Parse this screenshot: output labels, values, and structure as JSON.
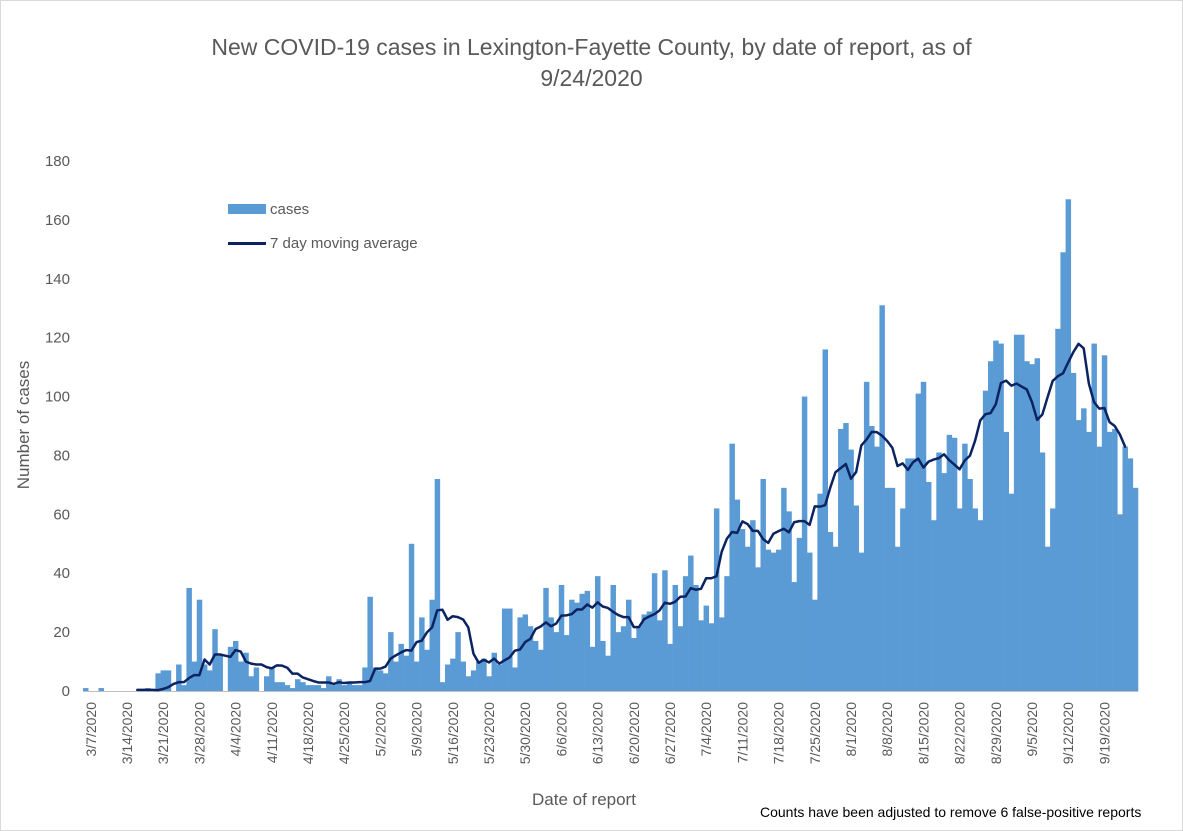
{
  "chart_data": {
    "type": "bar",
    "title_line1": "New COVID-19 cases in Lexington-Fayette County, by date of report, as of",
    "title_line2": "9/24/2020",
    "xlabel": "Date of report",
    "ylabel": "Number of cases",
    "ylim": [
      0,
      180
    ],
    "yticks": [
      0,
      20,
      40,
      60,
      80,
      100,
      120,
      140,
      160,
      180
    ],
    "note": "Counts have been adjusted to remove 6 false-positive reports",
    "grid": false,
    "legend_position": "top-left",
    "colors": {
      "bar": "#5b9bd5",
      "line": "#0b2361"
    },
    "x_start": "3/6/2020",
    "x_end": "9/24/2020",
    "tick_labels": [
      "3/7/2020",
      "3/14/2020",
      "3/21/2020",
      "3/28/2020",
      "4/4/2020",
      "4/11/2020",
      "4/18/2020",
      "4/25/2020",
      "5/2/2020",
      "5/9/2020",
      "5/16/2020",
      "5/23/2020",
      "5/30/2020",
      "6/6/2020",
      "6/13/2020",
      "6/20/2020",
      "6/27/2020",
      "7/4/2020",
      "7/11/2020",
      "7/18/2020",
      "7/25/2020",
      "8/1/2020",
      "8/8/2020",
      "8/15/2020",
      "8/22/2020",
      "8/29/2020",
      "9/5/2020",
      "9/12/2020",
      "9/19/2020"
    ],
    "series": [
      {
        "name": "cases",
        "type": "bar",
        "values": [
          1,
          0,
          0,
          1,
          0,
          0,
          0,
          0,
          0,
          0,
          0,
          0,
          1,
          0,
          6,
          7,
          7,
          0,
          9,
          2,
          35,
          10,
          31,
          9,
          7,
          21,
          12,
          0,
          15,
          17,
          10,
          13,
          5,
          8,
          0,
          5,
          8,
          3,
          3,
          2,
          1,
          4,
          3,
          2,
          2,
          2,
          1,
          5,
          2,
          4,
          2,
          3,
          2,
          2,
          8,
          32,
          8,
          7,
          6,
          20,
          10,
          16,
          12,
          50,
          10,
          25,
          14,
          31,
          72,
          3,
          9,
          11,
          20,
          10,
          5,
          7,
          10,
          11,
          5,
          13,
          9,
          28,
          28,
          8,
          25,
          26,
          22,
          17,
          14,
          35,
          25,
          20,
          36,
          19,
          31,
          30,
          33,
          34,
          15,
          39,
          17,
          12,
          36,
          20,
          22,
          31,
          18,
          22,
          26,
          27,
          40,
          24,
          41,
          16,
          36,
          22,
          39,
          46,
          36,
          24,
          29,
          23,
          62,
          25,
          39,
          84,
          65,
          55,
          49,
          58,
          42,
          72,
          48,
          47,
          48,
          69,
          61,
          37,
          52,
          100,
          47,
          31,
          67,
          116,
          54,
          49,
          89,
          91,
          82,
          63,
          47,
          105,
          90,
          83,
          131,
          69,
          69,
          49,
          62,
          79,
          79,
          101,
          105,
          71,
          58,
          81,
          74,
          87,
          86,
          62,
          84,
          72,
          62,
          58,
          102,
          112,
          119,
          118,
          88,
          67,
          121,
          121,
          112,
          111,
          113,
          81,
          49,
          62,
          123,
          149,
          167,
          108,
          92,
          96,
          88,
          118,
          83,
          114,
          88,
          89,
          60,
          83,
          79,
          69
        ]
      },
      {
        "name": "7 day moving average",
        "type": "line",
        "values": [
          null,
          null,
          null,
          null,
          null,
          null,
          null,
          null,
          null,
          null,
          0.4,
          0.4,
          0.4,
          0.4,
          0.3,
          0.7,
          1.3,
          2.4,
          3,
          3,
          4.4,
          5.4,
          5.4,
          10.7,
          9,
          12.4,
          12.4,
          12,
          11.6,
          13.9,
          13.4,
          10,
          9.3,
          9,
          9,
          8.1,
          7.7,
          8.7,
          8.6,
          7.9,
          5.9,
          5.9,
          4.6,
          4,
          3.4,
          2.9,
          2.9,
          2.9,
          2.4,
          3,
          2.7,
          2.9,
          2.9,
          3,
          3,
          3.4,
          7.6,
          7.6,
          8.3,
          11,
          12.1,
          13.1,
          13.9,
          13.7,
          16.6,
          17.1,
          19.9,
          21.6,
          27.4,
          27.6,
          24.2,
          25.4,
          25.1,
          24.3,
          21.6,
          12.7,
          9.6,
          10.6,
          9.7,
          11,
          9.3,
          10.4,
          11.4,
          13.7,
          14.1,
          16.6,
          17.7,
          21,
          21.9,
          23.3,
          22,
          22.9,
          25.6,
          25.7,
          26.1,
          27.7,
          27.7,
          29.4,
          28.3,
          30.1,
          28.7,
          28.2,
          26.9,
          25.8,
          25.1,
          25.1,
          21.7,
          21.7,
          24.4,
          25.3,
          26.1,
          27.4,
          30,
          29.6,
          30.3,
          32,
          32.1,
          34.9,
          34.4,
          34.7,
          38.3,
          38.3,
          39,
          47.3,
          51.7,
          54,
          53.7,
          57.6,
          56.7,
          54.4,
          54.4,
          51.6,
          50.3,
          53.4,
          54.3,
          55.1,
          53.9,
          57.3,
          57.7,
          57.7,
          56.4,
          62.7,
          62.6,
          63.1,
          69.1,
          74.3,
          75.7,
          77.1,
          72.1,
          74.4,
          83.4,
          85.4,
          88,
          87.9,
          86.7,
          84.9,
          82.6,
          76.4,
          77.3,
          75.1,
          77.7,
          78.9,
          75.9,
          77.9,
          78.6,
          79.1,
          80.4,
          78.4,
          76.9,
          75.3,
          78.3,
          79.9,
          85,
          91.9,
          94,
          94.4,
          97.4,
          104.6,
          105.4,
          103.7,
          104.4,
          103.4,
          102.4,
          98.1,
          92.1,
          93.9,
          99.7,
          105.3,
          106.9,
          107.9,
          111.6,
          115.1,
          117.9,
          116.4,
          104.4,
          98.1,
          95.9,
          96.1,
          91.3,
          90,
          87.1,
          83
        ]
      }
    ]
  }
}
